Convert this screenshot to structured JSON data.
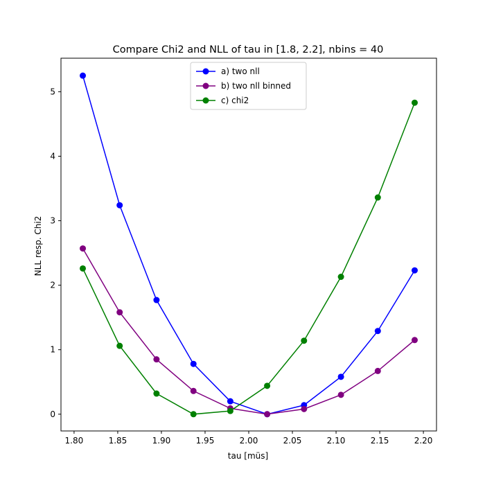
{
  "chart_data": {
    "type": "line",
    "title": "Compare Chi2 and NLL of tau in [1.8, 2.2], nbins = 40",
    "xlabel": "tau [müs]",
    "ylabel": "NLL resp. Chi2",
    "xlim": [
      1.785,
      2.215
    ],
    "ylim": [
      -0.26,
      5.52
    ],
    "xticks": [
      1.8,
      1.85,
      1.9,
      1.95,
      2.0,
      2.05,
      2.1,
      2.15,
      2.2
    ],
    "xtick_labels": [
      "1.80",
      "1.85",
      "1.90",
      "1.95",
      "2.00",
      "2.05",
      "2.10",
      "2.15",
      "2.20"
    ],
    "yticks": [
      0,
      1,
      2,
      3,
      4,
      5
    ],
    "ytick_labels": [
      "0",
      "1",
      "2",
      "3",
      "4",
      "5"
    ],
    "grid": false,
    "legend_position": "top-center",
    "x": [
      1.81,
      1.8522,
      1.8944,
      1.9367,
      1.9789,
      2.0211,
      2.0633,
      2.1056,
      2.1478,
      2.19
    ],
    "series": [
      {
        "name": "a) two nll",
        "color": "#0000ff",
        "values": [
          5.25,
          3.24,
          1.77,
          0.78,
          0.2,
          0.0,
          0.14,
          0.58,
          1.29,
          2.23
        ]
      },
      {
        "name": "b) two nll binned",
        "color": "#800080",
        "values": [
          2.57,
          1.58,
          0.85,
          0.36,
          0.09,
          0.0,
          0.08,
          0.3,
          0.67,
          1.15
        ]
      },
      {
        "name": "c) chi2",
        "color": "#008000",
        "values": [
          2.26,
          1.06,
          0.32,
          0.0,
          0.05,
          0.44,
          1.14,
          2.13,
          3.36,
          4.83
        ]
      }
    ]
  }
}
